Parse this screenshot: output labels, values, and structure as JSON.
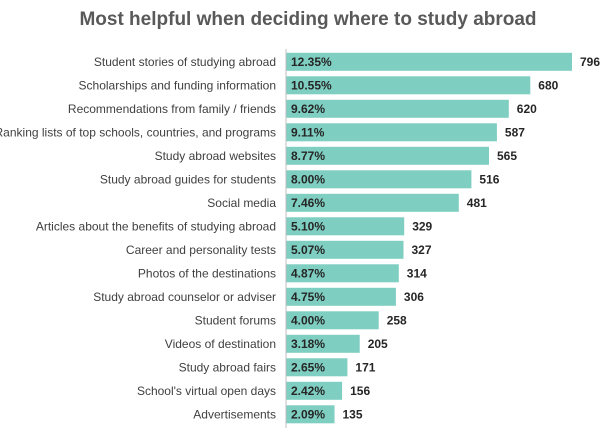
{
  "chart_data": {
    "type": "bar",
    "orientation": "horizontal",
    "title": "Most helpful when deciding where to study abroad",
    "xlabel": "",
    "ylabel": "",
    "grid": false,
    "legend": "none",
    "bar_color": "#7ECEC1",
    "axis_color": "#BFBFBF",
    "xlim": [
      0,
      850
    ],
    "categories": [
      "Student stories of studying abroad",
      "Scholarships and funding information",
      "Recommendations from family / friends",
      "Ranking lists of top schools, countries, and programs",
      "Study abroad websites",
      "Study abroad guides for students",
      "Social media",
      "Articles about the benefits of studying abroad",
      "Career and personality tests",
      "Photos of the destinations",
      "Study abroad counselor or adviser",
      "Student forums",
      "Videos of destination",
      "Study abroad fairs",
      "School's virtual open days",
      "Advertisements"
    ],
    "values": [
      796,
      680,
      620,
      587,
      565,
      516,
      481,
      329,
      327,
      314,
      306,
      258,
      205,
      171,
      156,
      135
    ],
    "percent_labels": [
      "12.35%",
      "10.55%",
      "9.62%",
      "9.11%",
      "8.77%",
      "8.00%",
      "7.46%",
      "5.10%",
      "5.07%",
      "4.87%",
      "4.75%",
      "4.00%",
      "3.18%",
      "2.65%",
      "2.42%",
      "2.09%"
    ]
  }
}
